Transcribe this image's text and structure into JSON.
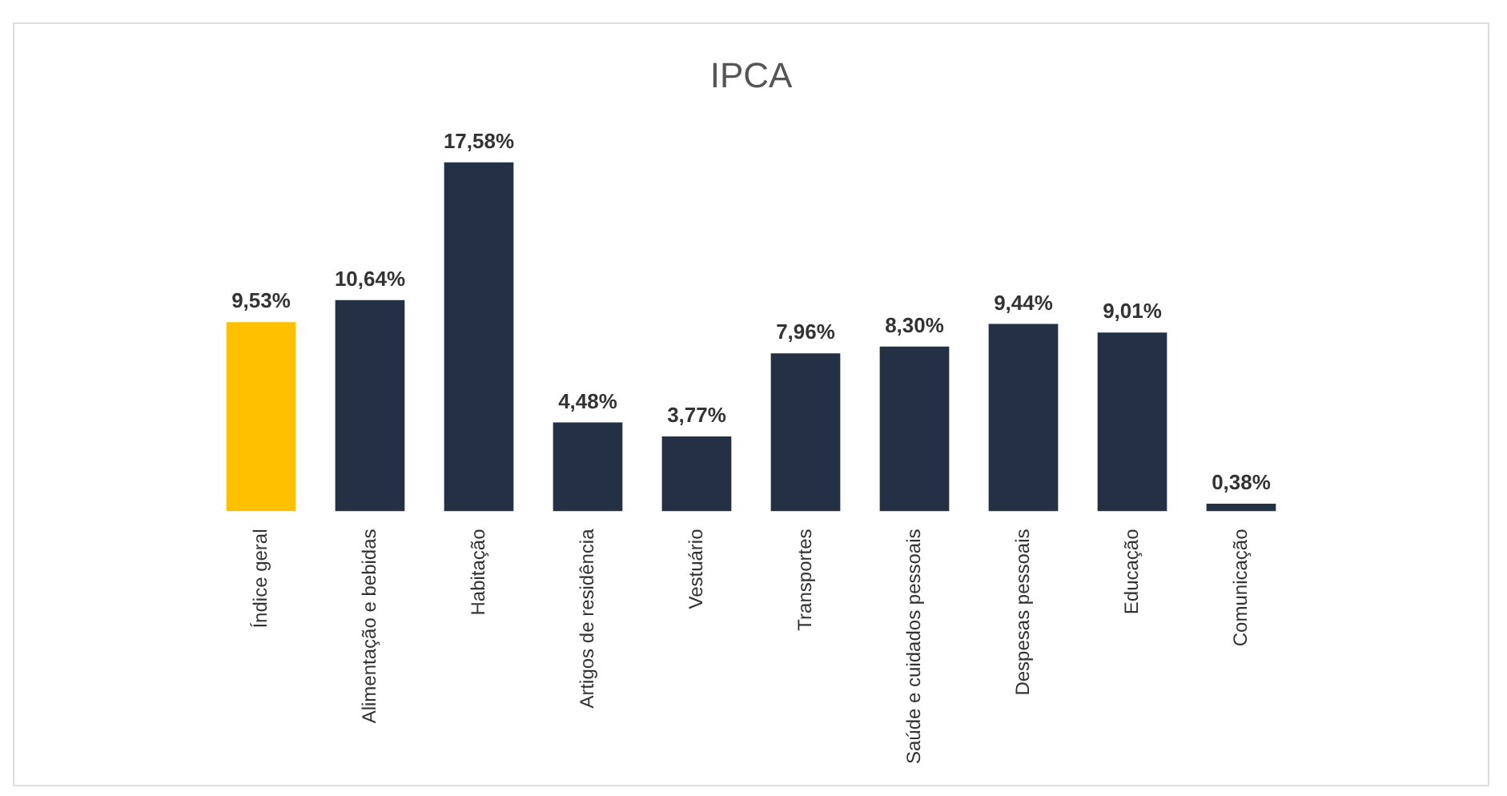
{
  "chart_data": {
    "type": "bar",
    "title": "IPCA",
    "categories": [
      "Índice geral",
      "Alimentação e bebidas",
      "Habitação",
      "Artigos de residência",
      "Vestuário",
      "Transportes",
      "Saúde e cuidados pessoais",
      "Despesas pessoais",
      "Educação",
      "Comunicação"
    ],
    "values": [
      9.53,
      10.64,
      17.58,
      4.48,
      3.77,
      7.96,
      8.3,
      9.44,
      9.01,
      0.38
    ],
    "value_labels": [
      "9,53%",
      "10,64%",
      "17,58%",
      "4,48%",
      "3,77%",
      "7,96%",
      "8,30%",
      "9,44%",
      "9,01%",
      "0,38%"
    ],
    "colors": [
      "#ffc000",
      "#243044",
      "#243044",
      "#243044",
      "#243044",
      "#243044",
      "#243044",
      "#243044",
      "#243044",
      "#243044"
    ]
  }
}
